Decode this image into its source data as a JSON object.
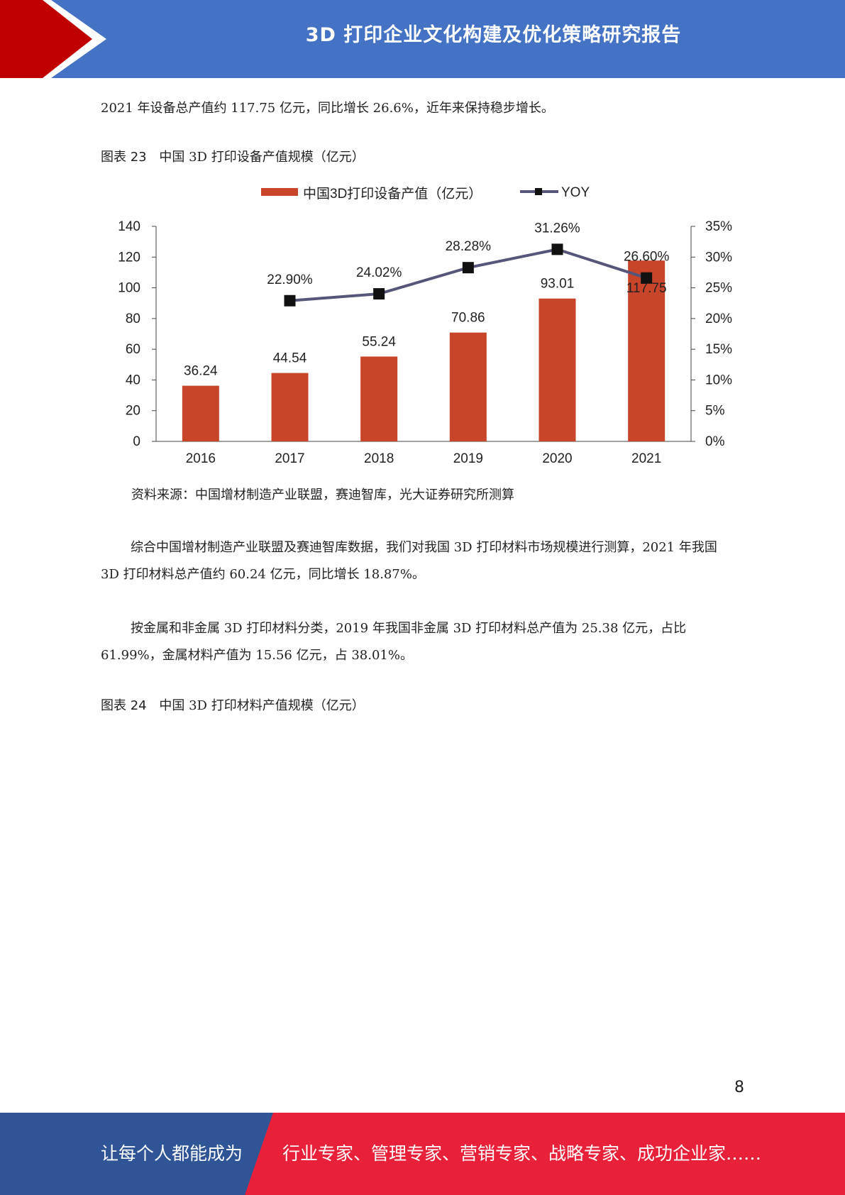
{
  "header": {
    "title": "3D 打印企业文化构建及优化策略研究报告"
  },
  "paragraphs": [
    "2021 年设备总产值约 117.75 亿元，同比增长 26.6%，近年来保持稳步增长。",
    "综合中国增材制造产业联盟及赛迪智库数据，我们对我国 3D 打印材料市场规模进行测算，2021 年我国 3D 打印材料总产值约 60.24 亿元，同比增长 18.87%。",
    "按金属和非金属 3D 打印材料分类，2019 年我国非金属 3D 打印材料总产值为 25.38 亿元，占比 61.99%，金属材料产值为 15.56 亿元，占 38.01%。"
  ],
  "figures": [
    {
      "label": "图表 23",
      "title": "中国 3D 打印设备产值规模（亿元）"
    },
    {
      "label": "图表 24",
      "title": "中国 3D 打印材料产值规模（亿元）"
    }
  ],
  "source": "资料来源：中国增材制造产业联盟，赛迪智库，光大证券研究所测算",
  "chart_data": {
    "type": "bar",
    "categories": [
      "2016",
      "2017",
      "2018",
      "2019",
      "2020",
      "2021"
    ],
    "series": [
      {
        "name": "中国3D打印设备产值（亿元）",
        "type": "bar",
        "axis": "left",
        "color": "#c9452a",
        "values": [
          36.24,
          44.54,
          55.24,
          70.86,
          93.01,
          117.75
        ],
        "labels": [
          "36.24",
          "44.54",
          "55.24",
          "70.86",
          "93.01",
          "117.75"
        ]
      },
      {
        "name": "YOY",
        "type": "line",
        "axis": "right",
        "color": "#56557a",
        "values": [
          null,
          22.9,
          24.02,
          28.28,
          31.26,
          26.6
        ],
        "labels": [
          "",
          "22.90%",
          "24.02%",
          "28.28%",
          "31.26%",
          "26.60%"
        ]
      }
    ],
    "ylim": [
      0,
      140
    ],
    "y_ticks": [
      "0",
      "20",
      "40",
      "60",
      "80",
      "100",
      "120",
      "140"
    ],
    "y2lim": [
      0,
      35
    ],
    "y2_ticks": [
      "0%",
      "5%",
      "10%",
      "15%",
      "20%",
      "25%",
      "30%",
      "35%"
    ],
    "legend": "top",
    "grid": false
  },
  "page_number": "8",
  "footer": {
    "left": "让每个人都能成为",
    "right": "行业专家、管理专家、营销专家、战略专家、成功企业家……"
  }
}
